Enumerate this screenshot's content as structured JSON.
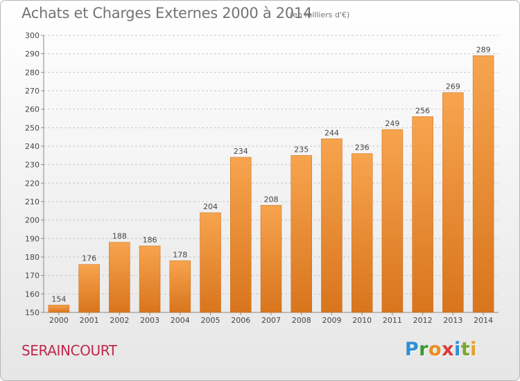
{
  "title": "Achats et Charges Externes 2000 à 2014",
  "unit_note": "(en milliers d'€)",
  "commune": "SERAINCOURT",
  "brand": {
    "letters": [
      "P",
      "r",
      "o",
      "x",
      "i",
      "t",
      "i"
    ],
    "colors": [
      "#2f8fd8",
      "#3a9a2f",
      "#f08c1e",
      "#d93d3d",
      "#2f8fd8",
      "#7aa82f",
      "#e8a12a"
    ]
  },
  "colors": {
    "bar_light": "#f7a44e",
    "bar_dark": "#d8751d",
    "axis": "#8a8a8a",
    "grid": "#c8c8c8",
    "text": "#444444",
    "title": "#737373",
    "commune": "#c0284c"
  },
  "chart_data": {
    "type": "bar",
    "categories": [
      "2000",
      "2001",
      "2002",
      "2003",
      "2004",
      "2005",
      "2006",
      "2007",
      "2008",
      "2009",
      "2010",
      "2011",
      "2012",
      "2013",
      "2014"
    ],
    "values": [
      154,
      176,
      188,
      186,
      178,
      204,
      234,
      208,
      235,
      244,
      236,
      249,
      256,
      269,
      289
    ],
    "ylim": [
      150,
      300
    ],
    "yticks": [
      150,
      160,
      170,
      180,
      190,
      200,
      210,
      220,
      230,
      240,
      250,
      260,
      270,
      280,
      290,
      300
    ],
    "grid": true,
    "data_labels": true
  }
}
